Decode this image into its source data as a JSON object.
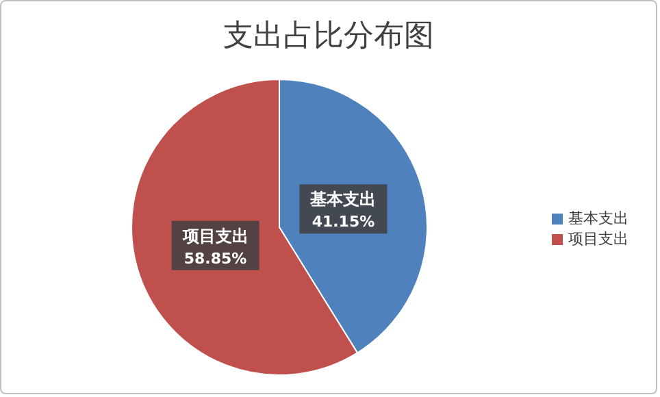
{
  "chart_data": {
    "type": "pie",
    "title": "支出占比分布图",
    "categories": [
      "基本支出",
      "项目支出"
    ],
    "values": [
      41.15,
      58.85
    ],
    "colors": [
      "#4f81bd",
      "#c0504d"
    ],
    "value_labels": [
      "41.15%",
      "58.85%"
    ],
    "legend": "right"
  }
}
